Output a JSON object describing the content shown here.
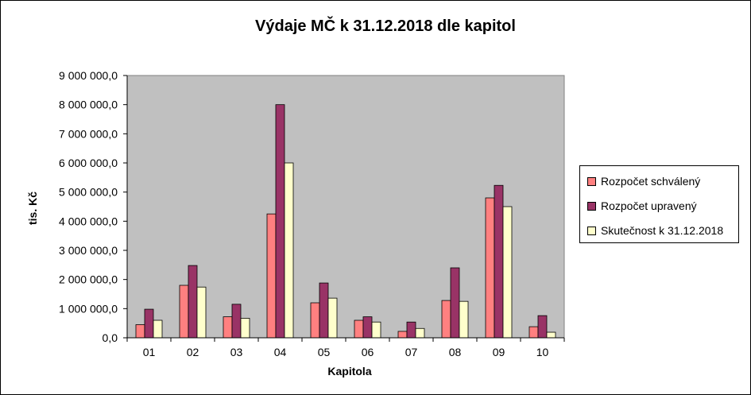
{
  "chart_data": {
    "type": "bar",
    "title": "Výdaje MČ k 31.12.2018 dle kapitol",
    "xlabel": "Kapitola",
    "ylabel": "tis. Kč",
    "ylim": [
      0,
      9000000
    ],
    "yticks": [
      "0,0",
      "1 000 000,0",
      "2 000 000,0",
      "3 000 000,0",
      "4 000 000,0",
      "5 000 000,0",
      "6 000 000,0",
      "7 000 000,0",
      "8 000 000,0",
      "9 000 000,0"
    ],
    "categories": [
      "01",
      "02",
      "03",
      "04",
      "05",
      "06",
      "07",
      "08",
      "09",
      "10"
    ],
    "series": [
      {
        "name": "Rozpočet schválený",
        "color": "#FF8080",
        "values": [
          450000,
          1800000,
          720000,
          4250000,
          1200000,
          600000,
          220000,
          1280000,
          4800000,
          380000
        ]
      },
      {
        "name": "Rozpočet upravený",
        "color": "#993366",
        "values": [
          980000,
          2480000,
          1150000,
          8000000,
          1880000,
          720000,
          540000,
          2400000,
          5230000,
          760000
        ]
      },
      {
        "name": "Skutečnost k 31.12.2018",
        "color": "#FFFFCC",
        "values": [
          600000,
          1740000,
          670000,
          6000000,
          1360000,
          540000,
          320000,
          1250000,
          4500000,
          190000
        ]
      }
    ],
    "plot_background": "#C0C0C0",
    "grid": false,
    "legend": "right"
  }
}
